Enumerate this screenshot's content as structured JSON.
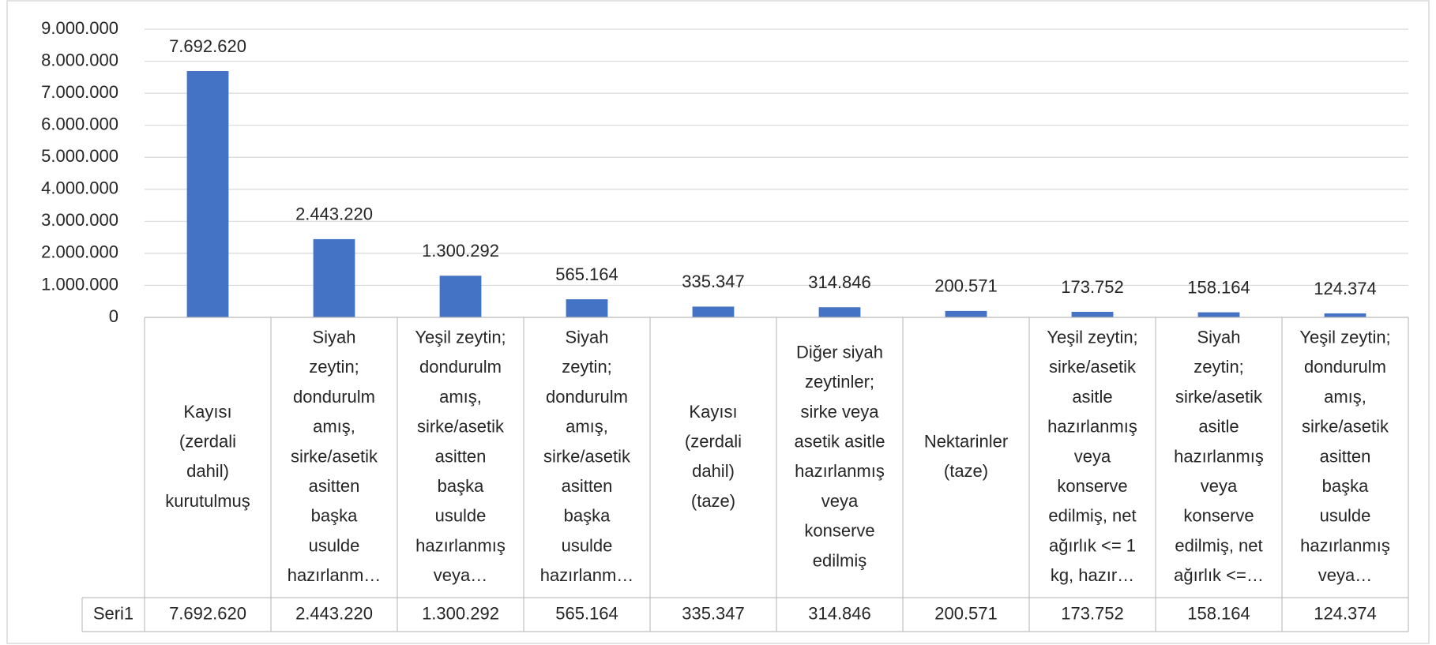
{
  "chart_data": {
    "type": "bar",
    "categories": [
      [
        "Kayısı",
        "(zerdali",
        "dahil)",
        "kurutulmuş"
      ],
      [
        "Siyah",
        "zeytin;",
        "dondurulm",
        "amış,",
        "sirke/asetik",
        "asitten",
        "başka",
        "usulde",
        "hazırlanm…"
      ],
      [
        "Yeşil zeytin;",
        "dondurulm",
        "amış,",
        "sirke/asetik",
        "asitten",
        "başka",
        "usulde",
        "hazırlanmış",
        "veya…"
      ],
      [
        "Siyah",
        "zeytin;",
        "dondurulm",
        "amış,",
        "sirke/asetik",
        "asitten",
        "başka",
        "usulde",
        "hazırlanm…"
      ],
      [
        "Kayısı",
        "(zerdali",
        "dahil)",
        "(taze)"
      ],
      [
        "Diğer siyah",
        "zeytinler;",
        "sirke veya",
        "asetik asitle",
        "hazırlanmış",
        "veya",
        "konserve",
        "edilmiş"
      ],
      [
        "Nektarinler",
        "(taze)"
      ],
      [
        "Yeşil zeytin;",
        "sirke/asetik",
        "asitle",
        "hazırlanmış",
        "veya",
        "konserve",
        "edilmiş, net",
        "ağırlık <= 1",
        "kg, hazır…"
      ],
      [
        "Siyah",
        "zeytin;",
        "sirke/asetik",
        "asitle",
        "hazırlanmış",
        "veya",
        "konserve",
        "edilmiş, net",
        "ağırlık <=…"
      ],
      [
        "Yeşil zeytin;",
        "dondurulm",
        "amış,",
        "sirke/asetik",
        "asitten",
        "başka",
        "usulde",
        "hazırlanmış",
        "veya…"
      ]
    ],
    "series": [
      {
        "name": "Seri1",
        "color": "#4472c4",
        "values": [
          7692620,
          2443220,
          1300292,
          565164,
          335347,
          314846,
          200571,
          173752,
          158164,
          124374
        ],
        "value_labels": [
          "7.692.620",
          "2.443.220",
          "1.300.292",
          "565.164",
          "335.347",
          "314.846",
          "200.571",
          "173.752",
          "158.164",
          "124.374"
        ]
      }
    ],
    "ylim": [
      0,
      9000000
    ],
    "yticks": [
      0,
      {
        "value": 1000000,
        "label": "1.000.000"
      },
      {
        "value": 2000000,
        "label": "2.000.000"
      },
      {
        "value": 3000000,
        "label": "3.000.000"
      },
      {
        "value": 4000000,
        "label": "4.000.000"
      },
      {
        "value": 5000000,
        "label": "5.000.000"
      },
      {
        "value": 6000000,
        "label": "6.000.000"
      },
      {
        "value": 7000000,
        "label": "7.000.000"
      },
      {
        "value": 8000000,
        "label": "8.000.000"
      },
      {
        "value": 9000000,
        "label": "9.000.000"
      }
    ],
    "grid": true,
    "data_table": true
  }
}
